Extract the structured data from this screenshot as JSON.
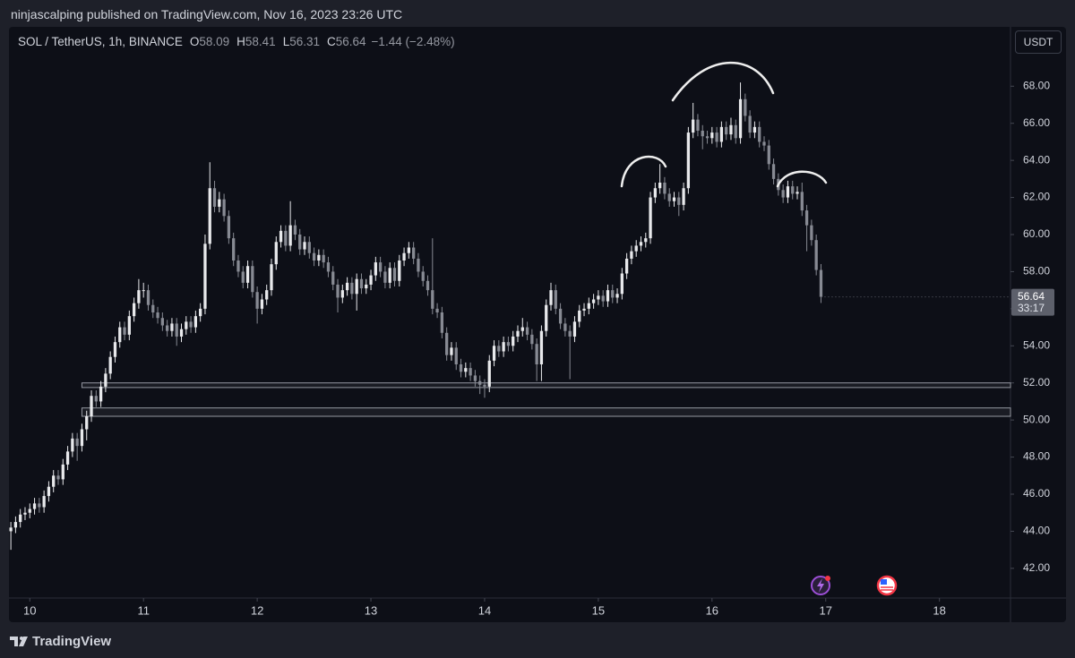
{
  "header": {
    "published": "ninjascalping published on TradingView.com, Nov 16, 2023 23:26 UTC"
  },
  "footer": {
    "brand": "TradingView"
  },
  "chart_data": {
    "type": "candlestick",
    "symbol": "SOL / TetherUS, 1h, BINANCE",
    "ohlc_labels": [
      "O",
      "H",
      "L",
      "C"
    ],
    "change": "−1.44 (−2.48%)",
    "currency": "USDT",
    "countdown": "33:17",
    "up_color": "#e8e9ec",
    "down_color": "#878a93",
    "grid": false,
    "xlim": [
      -4.4,
      207
    ],
    "ylim": [
      40.4,
      71.2
    ],
    "xticks": [
      {
        "value": 0,
        "label": "10"
      },
      {
        "value": 24,
        "label": "11"
      },
      {
        "value": 48,
        "label": "12"
      },
      {
        "value": 72,
        "label": "13"
      },
      {
        "value": 96,
        "label": "14"
      },
      {
        "value": 120,
        "label": "15"
      },
      {
        "value": 144,
        "label": "16"
      },
      {
        "value": 168,
        "label": "17"
      },
      {
        "value": 192,
        "label": "18"
      }
    ],
    "yticks": [
      {
        "value": 42,
        "label": "42.00"
      },
      {
        "value": 44,
        "label": "44.00"
      },
      {
        "value": 46,
        "label": "46.00"
      },
      {
        "value": 48,
        "label": "48.00"
      },
      {
        "value": 50,
        "label": "50.00"
      },
      {
        "value": 52,
        "label": "52.00"
      },
      {
        "value": 54,
        "label": "54.00"
      },
      {
        "value": 56,
        "label": "56.00"
      },
      {
        "value": 58,
        "label": "58.00"
      },
      {
        "value": 60,
        "label": "60.00"
      },
      {
        "value": 62,
        "label": "62.00"
      },
      {
        "value": 64,
        "label": "64.00"
      },
      {
        "value": 66,
        "label": "66.00"
      },
      {
        "value": 68,
        "label": "68.00"
      }
    ],
    "zones": [
      {
        "start": 11,
        "low": 51.75,
        "high": 52.0
      },
      {
        "start": 11,
        "low": 50.2,
        "high": 50.65
      }
    ],
    "x": [
      -4,
      -3,
      -2,
      -1,
      0,
      1,
      2,
      3,
      4,
      5,
      6,
      7,
      8,
      9,
      10,
      11,
      12,
      13,
      14,
      15,
      16,
      17,
      18,
      19,
      20,
      21,
      22,
      23,
      24,
      25,
      26,
      27,
      28,
      29,
      30,
      31,
      32,
      33,
      34,
      35,
      36,
      37,
      38,
      39,
      40,
      41,
      42,
      43,
      44,
      45,
      46,
      47,
      48,
      49,
      50,
      51,
      52,
      53,
      54,
      55,
      56,
      57,
      58,
      59,
      60,
      61,
      62,
      63,
      64,
      65,
      66,
      67,
      68,
      69,
      70,
      71,
      72,
      73,
      74,
      75,
      76,
      77,
      78,
      79,
      80,
      81,
      82,
      83,
      84,
      85,
      86,
      87,
      88,
      89,
      90,
      91,
      92,
      93,
      94,
      95,
      96,
      97,
      98,
      99,
      100,
      101,
      102,
      103,
      104,
      105,
      106,
      107,
      108,
      109,
      110,
      111,
      112,
      113,
      114,
      115,
      116,
      117,
      118,
      119,
      120,
      121,
      122,
      123,
      124,
      125,
      126,
      127,
      128,
      129,
      130,
      131,
      132,
      133,
      134,
      135,
      136,
      137,
      138,
      139,
      140,
      141,
      142,
      143,
      144,
      145,
      146,
      147,
      148,
      149,
      150,
      151,
      152,
      153,
      154,
      155,
      156,
      157,
      158,
      159,
      160,
      161,
      162,
      163,
      164,
      165,
      166,
      167
    ],
    "open": [
      44.0,
      44.2,
      44.5,
      44.9,
      45.0,
      45.2,
      45.5,
      45.3,
      45.9,
      46.4,
      47.0,
      46.8,
      47.6,
      48.3,
      49.0,
      48.6,
      49.5,
      50.2,
      51.3,
      51.0,
      51.8,
      52.5,
      53.4,
      54.2,
      55.0,
      54.6,
      55.6,
      56.3,
      57.0,
      57.0,
      56.2,
      55.8,
      55.5,
      55.1,
      54.8,
      55.2,
      54.5,
      54.9,
      55.3,
      55.0,
      55.6,
      56.0,
      59.5,
      62.5,
      61.5,
      61.9,
      61.0,
      59.8,
      58.6,
      58.0,
      57.4,
      58.3,
      56.9,
      56.0,
      56.5,
      57.0,
      58.4,
      59.6,
      60.2,
      59.4,
      60.5,
      60.0,
      59.2,
      59.6,
      59.0,
      58.6,
      58.9,
      58.5,
      58.0,
      57.3,
      56.6,
      57.0,
      57.4,
      56.8,
      57.6,
      57.1,
      57.3,
      57.8,
      58.5,
      58.0,
      57.4,
      58.2,
      57.5,
      58.6,
      59.0,
      59.3,
      58.7,
      58.0,
      57.5,
      57.0,
      56.0,
      55.8,
      54.7,
      53.5,
      53.9,
      53.0,
      52.6,
      52.8,
      52.4,
      52.1,
      51.9,
      51.8,
      53.2,
      54.0,
      53.7,
      54.2,
      54.0,
      54.5,
      54.8,
      55.0,
      54.6,
      54.1,
      53.0,
      54.8,
      56.2,
      57.0,
      56.0,
      55.2,
      54.8,
      54.5,
      55.3,
      55.9,
      56.0,
      56.3,
      56.5,
      56.7,
      56.4,
      57.0,
      56.6,
      56.8,
      57.9,
      58.7,
      59.1,
      59.4,
      59.6,
      59.8,
      62.0,
      62.5,
      62.8,
      62.2,
      61.8,
      62.0,
      61.6,
      62.5,
      65.5,
      66.2,
      65.6,
      65.3,
      65.2,
      65.5,
      65.0,
      65.8,
      65.4,
      65.9,
      65.2,
      67.3,
      66.4,
      65.5,
      65.8,
      65.0,
      64.8,
      63.8,
      63.0,
      62.4,
      62.0,
      62.6,
      62.2,
      62.3,
      61.3,
      60.5,
      59.7,
      58.09
    ],
    "high": [
      44.5,
      44.8,
      45.2,
      45.3,
      45.5,
      45.8,
      45.8,
      46.2,
      46.7,
      47.3,
      47.3,
      47.9,
      48.6,
      49.3,
      49.3,
      49.8,
      50.5,
      51.6,
      51.6,
      52.1,
      52.8,
      53.7,
      54.5,
      55.3,
      55.3,
      55.9,
      56.6,
      57.6,
      57.4,
      57.3,
      56.5,
      56.1,
      55.8,
      55.4,
      55.5,
      55.5,
      55.2,
      55.6,
      55.6,
      55.9,
      56.3,
      60.0,
      63.9,
      62.9,
      62.3,
      62.2,
      61.3,
      60.1,
      58.9,
      58.3,
      58.6,
      58.6,
      57.2,
      56.8,
      57.3,
      58.7,
      59.9,
      60.5,
      60.5,
      61.8,
      60.8,
      60.3,
      59.9,
      59.9,
      59.3,
      59.2,
      59.2,
      58.8,
      58.3,
      57.6,
      57.3,
      57.7,
      57.7,
      57.9,
      57.9,
      57.6,
      58.1,
      58.8,
      58.8,
      58.3,
      58.5,
      58.5,
      58.9,
      59.3,
      59.6,
      59.6,
      59.0,
      58.3,
      57.8,
      59.8,
      56.3,
      56.1,
      55.0,
      54.2,
      54.2,
      53.3,
      53.1,
      53.1,
      52.7,
      52.4,
      52.2,
      53.5,
      54.3,
      54.3,
      54.5,
      54.5,
      54.8,
      55.1,
      55.5,
      55.3,
      54.9,
      54.4,
      55.1,
      56.5,
      57.4,
      57.3,
      56.3,
      55.5,
      55.1,
      55.6,
      56.2,
      56.3,
      56.6,
      56.8,
      57.0,
      57.0,
      57.3,
      57.3,
      57.1,
      58.2,
      59.0,
      59.4,
      59.7,
      59.9,
      60.1,
      62.3,
      62.8,
      63.8,
      63.1,
      62.5,
      62.3,
      62.3,
      62.8,
      65.8,
      67.1,
      66.5,
      65.9,
      65.6,
      65.8,
      65.8,
      66.1,
      66.1,
      66.3,
      66.2,
      68.2,
      67.6,
      66.7,
      66.1,
      66.1,
      65.3,
      65.1,
      64.1,
      63.3,
      62.7,
      62.9,
      62.9,
      62.6,
      62.8,
      61.6,
      60.8,
      60.0,
      58.41
    ],
    "low": [
      43.0,
      43.9,
      44.2,
      44.6,
      44.7,
      44.9,
      45.0,
      45.0,
      45.6,
      46.1,
      46.5,
      46.5,
      47.3,
      48.0,
      47.8,
      48.3,
      48.9,
      49.9,
      50.7,
      50.7,
      51.5,
      52.2,
      53.1,
      53.9,
      54.3,
      54.3,
      55.3,
      56.0,
      56.6,
      55.9,
      55.5,
      55.2,
      54.8,
      54.5,
      54.5,
      54.0,
      54.2,
      54.6,
      54.7,
      54.7,
      55.3,
      55.7,
      59.2,
      61.2,
      61.2,
      60.7,
      59.5,
      58.3,
      57.7,
      57.1,
      57.1,
      56.6,
      55.2,
      55.7,
      56.2,
      56.7,
      58.1,
      59.3,
      59.1,
      59.1,
      59.7,
      58.9,
      58.9,
      58.7,
      58.3,
      58.3,
      58.2,
      57.7,
      57.0,
      55.8,
      56.3,
      56.7,
      56.5,
      55.9,
      56.8,
      56.8,
      57.0,
      57.5,
      57.7,
      57.1,
      57.1,
      57.2,
      57.2,
      58.3,
      58.7,
      58.4,
      57.7,
      57.2,
      56.7,
      55.7,
      55.5,
      54.4,
      53.2,
      53.2,
      52.7,
      52.3,
      52.3,
      52.1,
      51.8,
      51.4,
      51.2,
      51.5,
      52.9,
      53.4,
      53.4,
      53.7,
      53.7,
      54.2,
      54.5,
      54.3,
      53.8,
      52.1,
      52.1,
      54.5,
      55.9,
      55.7,
      54.9,
      54.5,
      52.2,
      54.2,
      55.0,
      55.6,
      55.7,
      56.0,
      56.2,
      56.1,
      56.1,
      56.3,
      56.3,
      56.5,
      57.6,
      58.4,
      58.8,
      59.1,
      59.3,
      59.5,
      61.7,
      62.2,
      61.9,
      61.5,
      61.5,
      61.0,
      61.3,
      62.2,
      65.2,
      65.3,
      64.6,
      64.9,
      64.9,
      64.7,
      64.7,
      65.1,
      65.1,
      64.9,
      64.9,
      66.1,
      65.2,
      65.2,
      64.7,
      64.5,
      63.5,
      62.7,
      62.1,
      61.7,
      61.7,
      61.9,
      61.9,
      61.0,
      59.1,
      59.4,
      57.8,
      56.31
    ],
    "close": [
      44.2,
      44.5,
      44.9,
      45.0,
      45.2,
      45.5,
      45.3,
      45.9,
      46.4,
      47.0,
      46.8,
      47.6,
      48.3,
      49.0,
      48.6,
      49.5,
      50.2,
      51.3,
      51.0,
      51.8,
      52.5,
      53.4,
      54.2,
      55.0,
      54.6,
      55.6,
      56.3,
      57.0,
      57.0,
      56.2,
      55.8,
      55.5,
      55.1,
      54.8,
      55.2,
      54.5,
      54.9,
      55.3,
      55.0,
      55.6,
      56.0,
      59.5,
      62.5,
      61.5,
      61.9,
      61.0,
      59.8,
      58.6,
      58.0,
      57.4,
      58.3,
      56.9,
      56.0,
      56.5,
      57.0,
      58.4,
      59.6,
      60.2,
      59.4,
      60.5,
      60.0,
      59.2,
      59.6,
      59.0,
      58.6,
      58.9,
      58.5,
      58.0,
      57.3,
      56.6,
      57.0,
      57.4,
      56.8,
      57.6,
      57.1,
      57.3,
      57.8,
      58.5,
      58.0,
      57.4,
      58.2,
      57.5,
      58.6,
      59.0,
      59.3,
      58.7,
      58.0,
      57.5,
      57.0,
      56.0,
      55.8,
      54.7,
      53.5,
      53.9,
      53.0,
      52.6,
      52.8,
      52.4,
      52.1,
      51.9,
      51.8,
      53.2,
      54.0,
      53.7,
      54.2,
      54.0,
      54.5,
      54.8,
      55.0,
      54.6,
      54.1,
      53.0,
      54.8,
      56.2,
      57.0,
      56.0,
      55.2,
      54.8,
      54.5,
      55.3,
      55.9,
      56.0,
      56.3,
      56.5,
      56.7,
      56.4,
      57.0,
      56.6,
      56.8,
      57.9,
      58.7,
      59.1,
      59.4,
      59.6,
      59.8,
      62.0,
      62.5,
      62.8,
      62.2,
      61.8,
      62.0,
      61.6,
      62.5,
      65.5,
      66.2,
      65.6,
      65.3,
      65.2,
      65.5,
      65.0,
      65.8,
      65.4,
      65.9,
      65.2,
      67.3,
      66.4,
      65.5,
      65.8,
      65.0,
      64.8,
      63.8,
      63.0,
      62.4,
      62.0,
      62.6,
      62.2,
      62.3,
      61.3,
      60.5,
      59.7,
      58.09,
      56.64
    ]
  }
}
